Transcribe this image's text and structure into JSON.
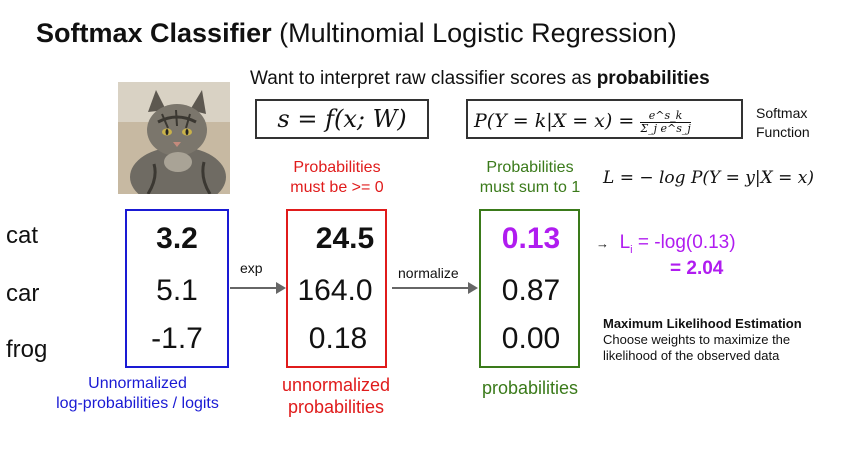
{
  "title": {
    "bold": "Softmax Classifier",
    "rest": " (Multinomial Logistic Regression)"
  },
  "subtitle": {
    "plain": "Want to interpret raw classifier scores as ",
    "bold": "probabilities"
  },
  "score_formula": "s = f(x; W)",
  "softmax_formula": {
    "left": "P(Y = k|X = x) = ",
    "numerator": "e^s_k",
    "denominator": "Σ_j e^s_j"
  },
  "softmax_label": {
    "line1": "Softmax",
    "line2": "Function"
  },
  "loss_formula": "L = − log P(Y = y|X = x)",
  "notes": {
    "probs_positive_line1": "Probabilities",
    "probs_positive_line2": "must be >= 0",
    "probs_sum_line1": "Probabilities",
    "probs_sum_line2": "must sum to 1"
  },
  "classes": [
    "cat",
    "car",
    "frog"
  ],
  "logits": [
    "3.2",
    "5.1",
    "-1.7"
  ],
  "unnormalized": [
    "24.5",
    "164.0",
    "0.18"
  ],
  "probabilities": [
    "0.13",
    "0.87",
    "0.00"
  ],
  "arrows": {
    "exp": "exp",
    "normalize": "normalize",
    "result": "→"
  },
  "labels": {
    "logits_line1": "Unnormalized",
    "logits_line2": "log-probabilities / logits",
    "unnorm_line1": "unnormalized",
    "unnorm_line2": "probabilities",
    "probs": "probabilities"
  },
  "result": {
    "line1_prefix": "L",
    "line1_sub": "i",
    "line1_suffix": " = -log(0.13)",
    "line2": "= 2.04"
  },
  "mle": {
    "title": "Maximum Likelihood Estimation",
    "line1": "Choose weights to maximize the",
    "line2": "likelihood of the observed data"
  },
  "colors": {
    "blue": "#1a1ad4",
    "red": "#e01b1b",
    "green": "#3a7a1a",
    "purple": "#b01cf0"
  },
  "image": {
    "icon": "cat-photo"
  }
}
